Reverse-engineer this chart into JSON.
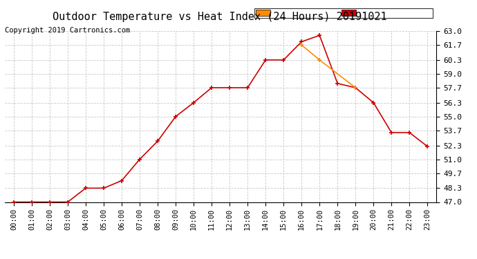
{
  "title": "Outdoor Temperature vs Heat Index (24 Hours) 20191021",
  "copyright": "Copyright 2019 Cartronics.com",
  "hours": [
    "00:00",
    "01:00",
    "02:00",
    "03:00",
    "04:00",
    "05:00",
    "06:00",
    "07:00",
    "08:00",
    "09:00",
    "10:00",
    "11:00",
    "12:00",
    "13:00",
    "14:00",
    "15:00",
    "16:00",
    "17:00",
    "18:00",
    "19:00",
    "20:00",
    "21:00",
    "22:00",
    "23:00"
  ],
  "temperature": [
    47.0,
    47.0,
    47.0,
    47.0,
    48.3,
    48.3,
    49.0,
    51.0,
    52.7,
    55.0,
    56.3,
    57.7,
    57.7,
    57.7,
    60.3,
    60.3,
    62.0,
    62.6,
    58.1,
    57.7,
    56.3,
    53.5,
    53.5,
    52.2
  ],
  "heat_index": [
    null,
    null,
    null,
    null,
    null,
    null,
    null,
    null,
    null,
    null,
    null,
    null,
    null,
    null,
    null,
    null,
    61.7,
    60.3,
    null,
    57.7,
    null,
    null,
    null,
    null
  ],
  "temp_color": "#cc0000",
  "heat_index_color": "#ff8c00",
  "ylim_min": 47.0,
  "ylim_max": 63.0,
  "yticks": [
    47.0,
    48.3,
    49.7,
    51.0,
    52.3,
    53.7,
    55.0,
    56.3,
    57.7,
    59.0,
    60.3,
    61.7,
    63.0
  ],
  "background_color": "#ffffff",
  "plot_bg_color": "#ffffff",
  "grid_color": "#c8c8c8",
  "legend_heat_bg": "#ff8c00",
  "legend_temp_bg": "#cc0000",
  "title_fontsize": 11,
  "copyright_fontsize": 7.5,
  "tick_fontsize": 8,
  "legend_fontsize": 7.5
}
